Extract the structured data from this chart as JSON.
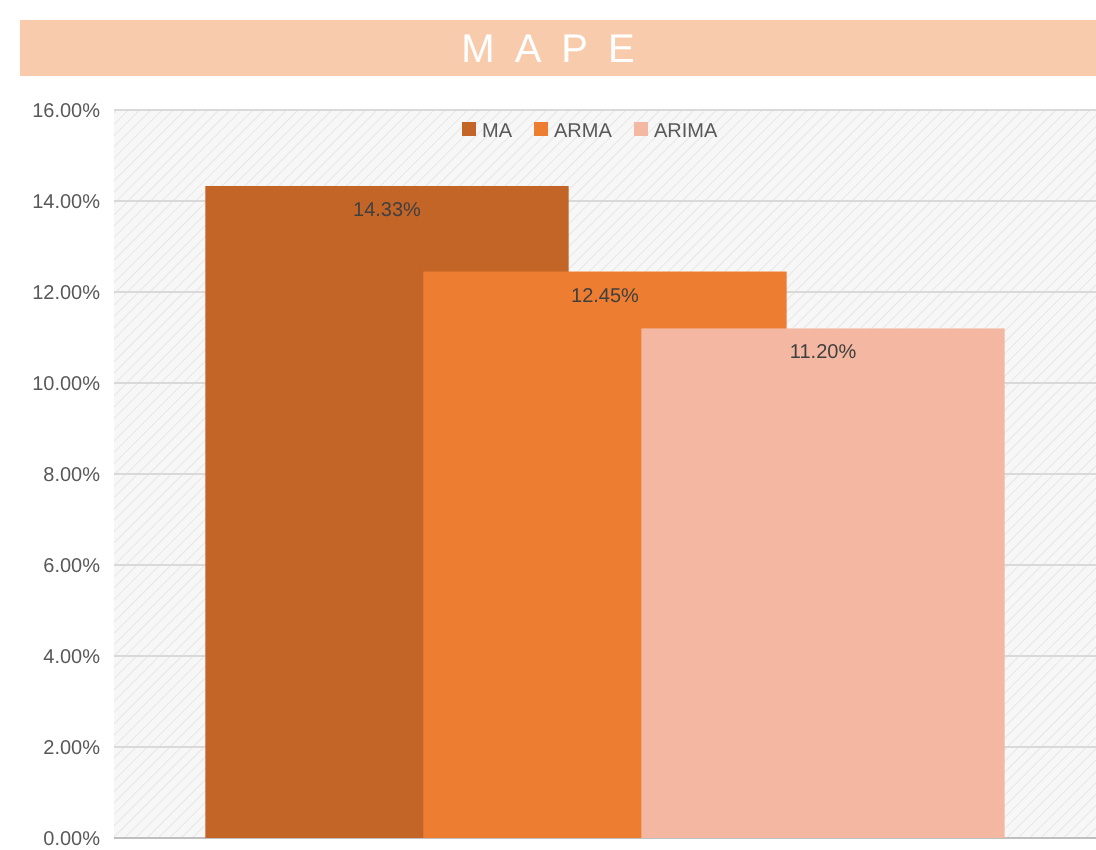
{
  "chart_data": {
    "type": "bar",
    "title": "MAPE",
    "categories": [
      null
    ],
    "series": [
      {
        "name": "MA",
        "color": "#c46528",
        "values": [
          14.33
        ],
        "value_labels": [
          "14.33%"
        ]
      },
      {
        "name": "ARMA",
        "color": "#ed7d31",
        "values": [
          12.45
        ],
        "value_labels": [
          "12.45%"
        ]
      },
      {
        "name": "ARIMA",
        "color": "#f4b8a2",
        "values": [
          11.2
        ],
        "value_labels": [
          "11.20%"
        ]
      }
    ],
    "ylim": [
      0,
      16
    ],
    "yticks": [
      {
        "value": 0,
        "label": "0.00%"
      },
      {
        "value": 2,
        "label": "2.00%"
      },
      {
        "value": 4,
        "label": "4.00%"
      },
      {
        "value": 6,
        "label": "6.00%"
      },
      {
        "value": 8,
        "label": "8.00%"
      },
      {
        "value": 10,
        "label": "10.00%"
      },
      {
        "value": 12,
        "label": "12.00%"
      },
      {
        "value": 14,
        "label": "14.00%"
      },
      {
        "value": 16,
        "label": "16.00%"
      }
    ],
    "grid": "y",
    "legend": "top"
  }
}
